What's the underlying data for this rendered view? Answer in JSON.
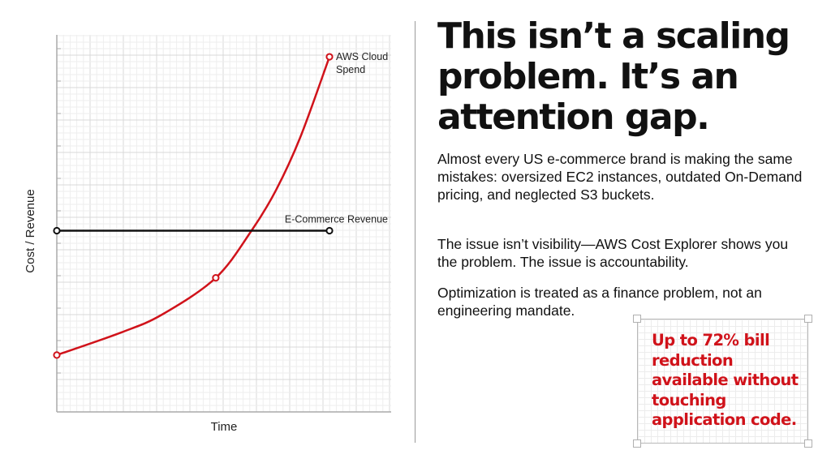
{
  "chart_data": {
    "type": "line",
    "xlabel": "Time",
    "ylabel": "Cost / Revenue",
    "xlim": [
      0,
      1.23
    ],
    "ylim": [
      0,
      11.6
    ],
    "grid": true,
    "series": [
      {
        "name": "AWS Cloud Spend",
        "color": "#d0121a",
        "x": [
          0,
          0.238,
          0.387,
          0.583,
          0.714,
          0.804,
          0.893,
          1.0
        ],
        "y": [
          1.75,
          2.45,
          3.0,
          4.125,
          5.575,
          6.825,
          8.45,
          10.925
        ],
        "markers": [
          0,
          3,
          7
        ],
        "label_lines": [
          "AWS Cloud",
          "Spend"
        ]
      },
      {
        "name": "E-Commerce Revenue",
        "color": "#111111",
        "x": [
          0,
          1.0
        ],
        "y": [
          5.575,
          5.575
        ],
        "markers": [
          0,
          1
        ],
        "label_lines": [
          "E-Commerce Revenue"
        ]
      }
    ]
  },
  "slide": {
    "title": "This isn’t a scaling problem. It’s an attention gap.",
    "paragraphs": [
      "Almost every US e-commerce brand is making the same mistakes: oversized EC2 instances, outdated On-Demand pricing, and neglected S3 buckets.",
      "The issue isn’t visibility—AWS Cost Explorer shows you the problem. The issue is accountability.",
      "Optimization is treated as a finance problem, not an engineering mandate."
    ],
    "callout": "Up to 72% bill reduction available without touching application code.",
    "accent_color": "#d0121a"
  }
}
